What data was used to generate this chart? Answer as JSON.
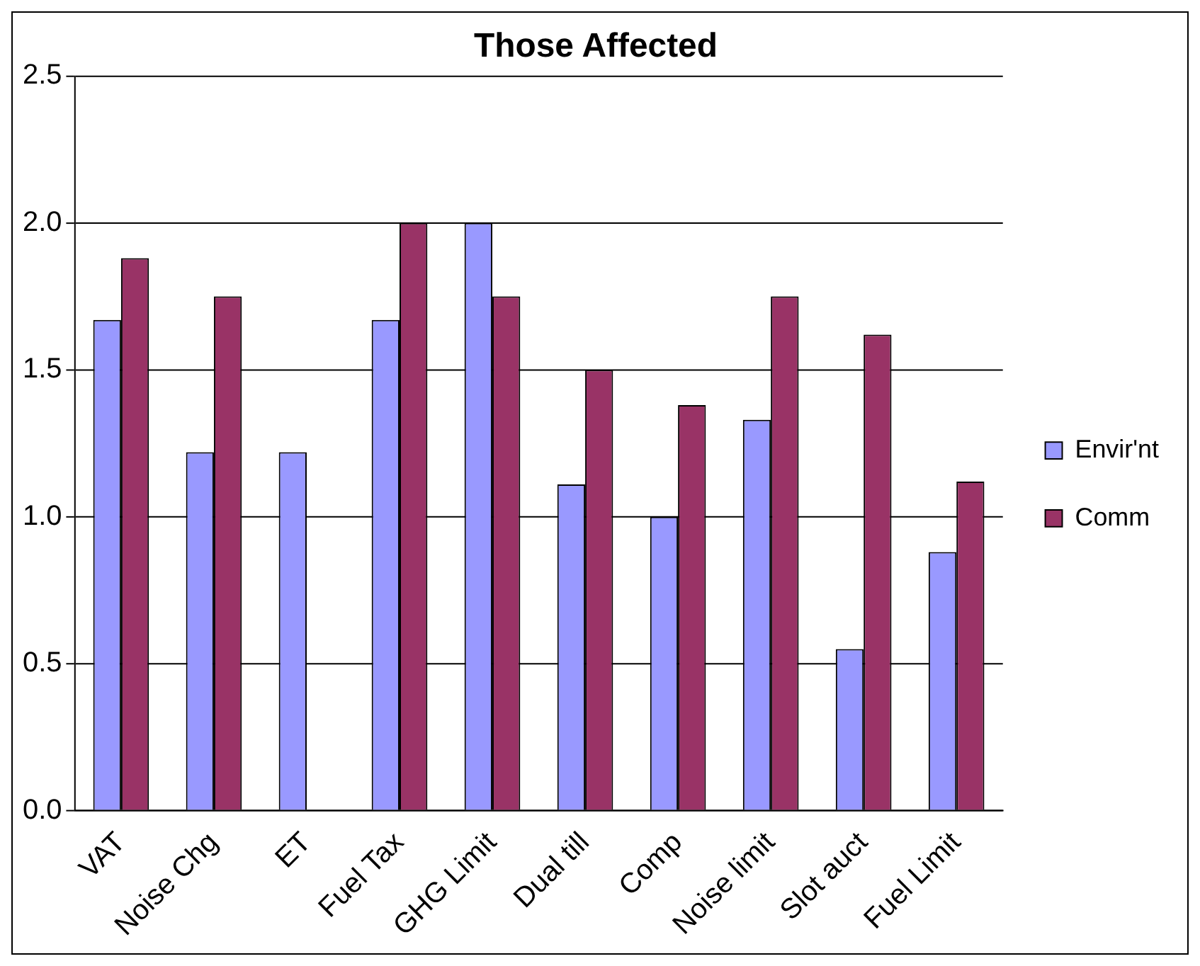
{
  "chart_data": {
    "type": "bar",
    "title": "Those Affected",
    "categories": [
      "VAT",
      "Noise Chg",
      "ET",
      "Fuel Tax",
      "GHG Limit",
      "Dual till",
      "Comp",
      "Noise limit",
      "Slot auct",
      "Fuel Limit"
    ],
    "series": [
      {
        "name": "Envir'nt",
        "color": "#9999ff",
        "values": [
          1.67,
          1.22,
          1.22,
          1.67,
          2.0,
          1.11,
          1.0,
          1.33,
          0.55,
          0.88
        ]
      },
      {
        "name": "Comm",
        "color": "#993366",
        "values": [
          1.88,
          1.75,
          null,
          2.0,
          1.75,
          1.5,
          1.38,
          1.75,
          1.62,
          1.12
        ]
      }
    ],
    "ylim": [
      0,
      2.5
    ],
    "yticks": [
      {
        "value": 0,
        "label": "0.0"
      },
      {
        "value": 0.5,
        "label": "0.5"
      },
      {
        "value": 1,
        "label": "1.0"
      },
      {
        "value": 1.5,
        "label": "1.5"
      },
      {
        "value": 2,
        "label": "2.0"
      },
      {
        "value": 2.5,
        "label": "2.5"
      }
    ],
    "grid": "y",
    "legend": "right"
  }
}
